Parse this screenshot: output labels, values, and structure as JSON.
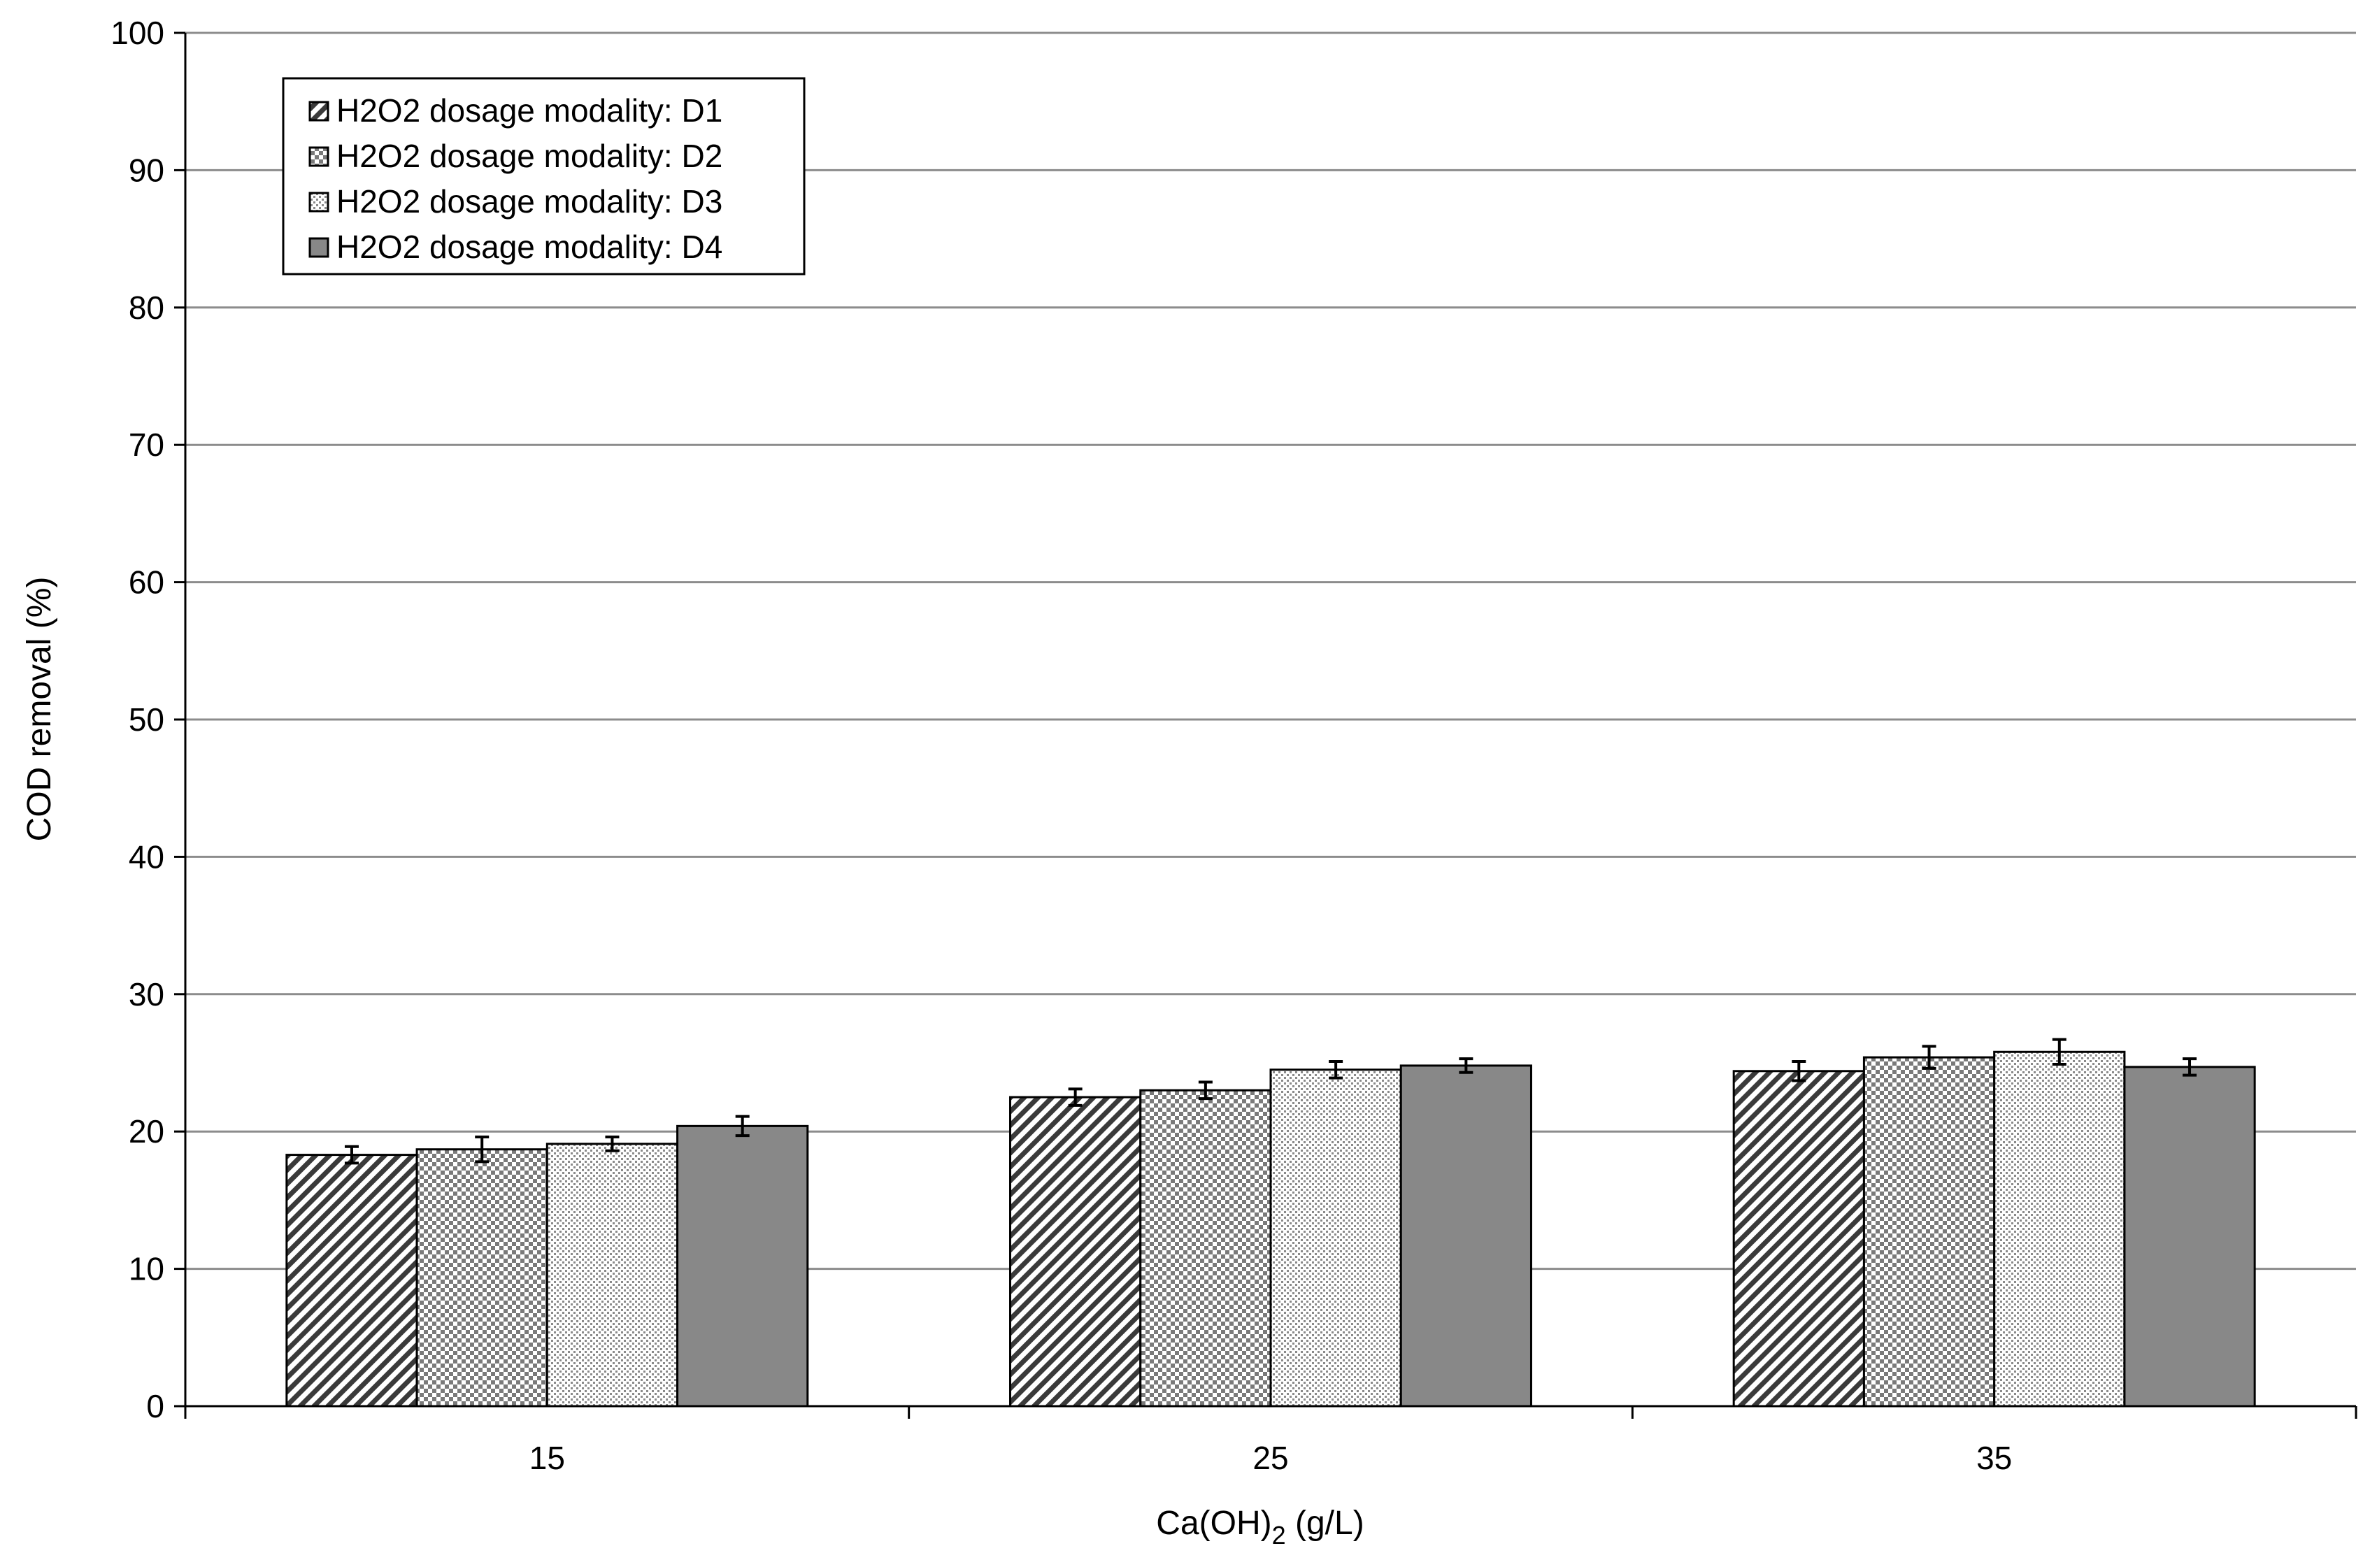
{
  "chart_data": {
    "type": "bar",
    "xlabel_main": "Ca(OH)",
    "xlabel_sub": "2",
    "xlabel_tail": " (g/L)",
    "ylabel": "COD removal (%)",
    "categories": [
      "15",
      "25",
      "35"
    ],
    "ylim": [
      0,
      100
    ],
    "yticks": [
      0,
      10,
      20,
      30,
      40,
      50,
      60,
      70,
      80,
      90,
      100
    ],
    "grid": true,
    "legend_position": "top-left",
    "series": [
      {
        "name": "H2O2 dosage modality: D1",
        "pattern": "diagonal",
        "values": [
          18.3,
          22.5,
          24.4
        ],
        "errors": [
          0.6,
          0.6,
          0.7
        ]
      },
      {
        "name": "H2O2 dosage modality: D2",
        "pattern": "checker",
        "values": [
          18.7,
          23.0,
          25.4
        ],
        "errors": [
          0.9,
          0.6,
          0.8
        ]
      },
      {
        "name": "H2O2 dosage modality: D3",
        "pattern": "dots",
        "values": [
          19.1,
          24.5,
          25.8
        ],
        "errors": [
          0.5,
          0.6,
          0.9
        ]
      },
      {
        "name": "H2O2 dosage modality: D4",
        "pattern": "solid",
        "values": [
          20.4,
          24.8,
          24.7
        ],
        "errors": [
          0.7,
          0.5,
          0.6
        ]
      }
    ],
    "colors": {
      "solid": "#888888",
      "grid": "#8c8c8c",
      "axis": "#000000"
    }
  }
}
